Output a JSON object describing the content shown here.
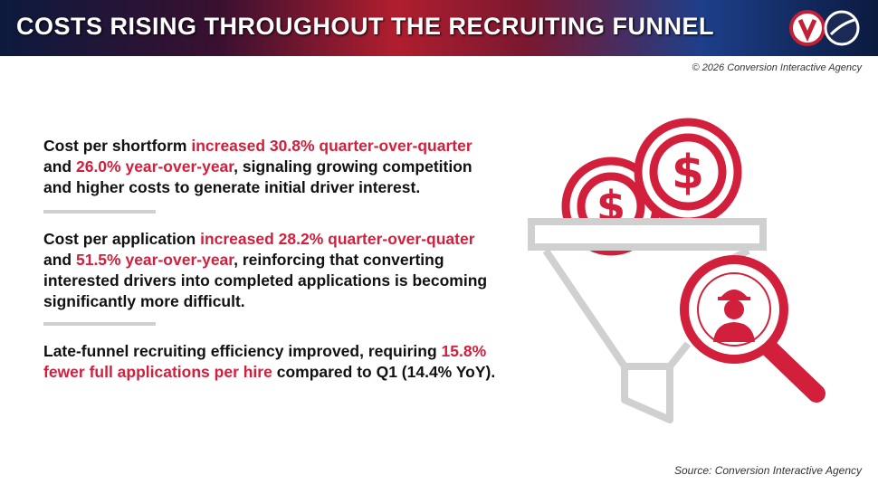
{
  "header": {
    "title": "COSTS RISING THROUGHOUT THE RECRUITING FUNNEL"
  },
  "copyright": "© 2026 Conversion Interactive Agency",
  "paragraphs": [
    {
      "segments": [
        {
          "text": "Cost per shortform ",
          "color": "#111111"
        },
        {
          "text": "increased 30.8% quarter-over-quarter",
          "color": "#d21f3c"
        },
        {
          "text": " and ",
          "color": "#111111"
        },
        {
          "text": "26.0% year-over-year",
          "color": "#d21f3c"
        },
        {
          "text": ", signaling growing competition and higher costs to generate initial driver interest.",
          "color": "#111111"
        }
      ]
    },
    {
      "segments": [
        {
          "text": "Cost per application ",
          "color": "#111111"
        },
        {
          "text": "increased 28.2% quarter-over-quater",
          "color": "#d21f3c"
        },
        {
          "text": " and ",
          "color": "#111111"
        },
        {
          "text": "51.5% year-over-year",
          "color": "#d21f3c"
        },
        {
          "text": ", reinforcing that converting interested drivers into completed applications is becoming significantly more difficult.",
          "color": "#111111"
        }
      ]
    },
    {
      "segments": [
        {
          "text": "Late-funnel recruiting efficiency improved, requiring ",
          "color": "#111111"
        },
        {
          "text": "15.8% fewer full applications per hire",
          "color": "#d21f3c"
        },
        {
          "text": " compared to Q1 (14.4% YoY).",
          "color": "#111111"
        }
      ]
    }
  ],
  "source": "Source: Conversion Interactive Agency"
}
